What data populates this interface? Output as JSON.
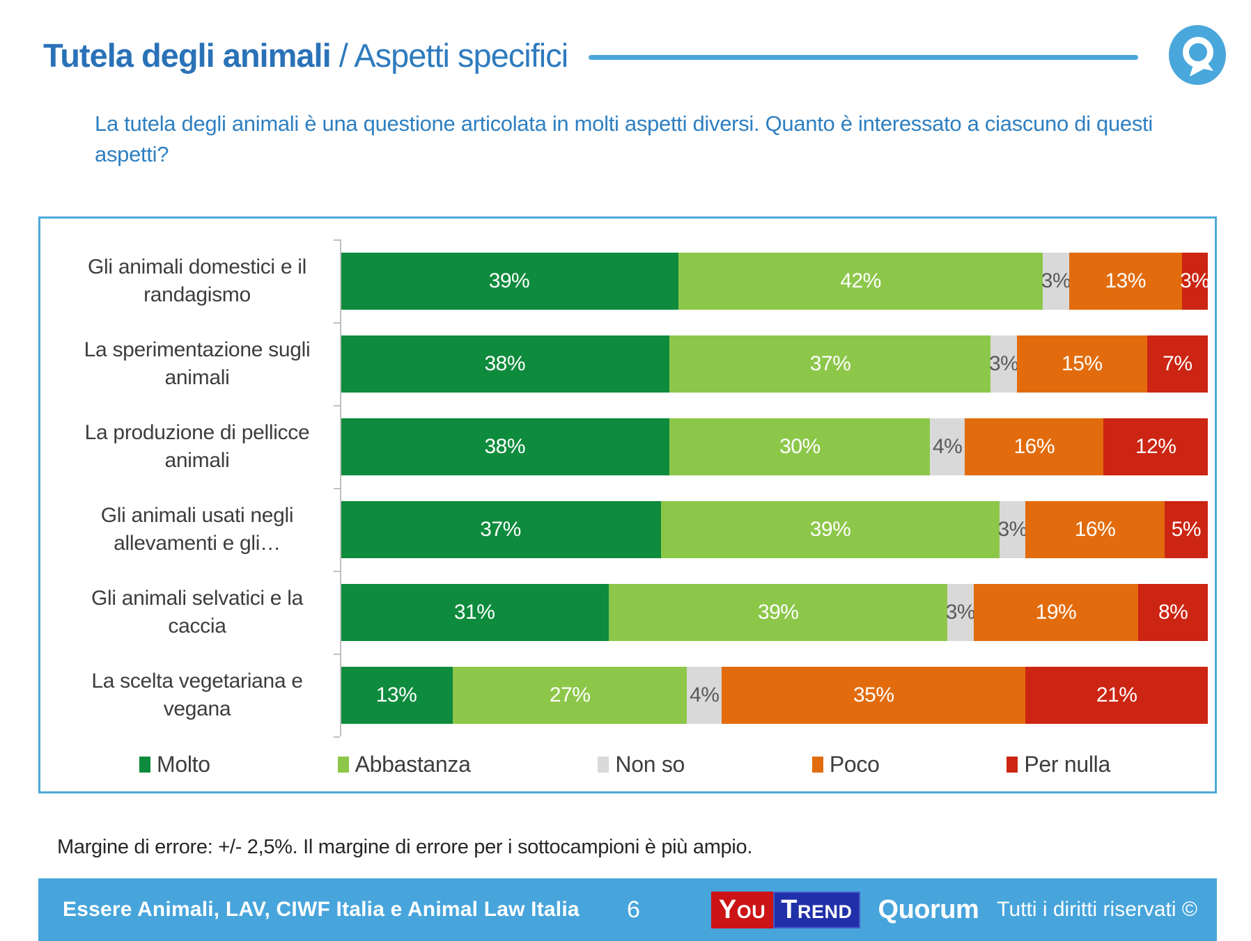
{
  "header": {
    "title_bold": "Tutela degli animali",
    "title_light": " / Aspetti specifici",
    "accent_color": "#49a7db"
  },
  "question": "La tutela degli animali è una questione articolata in molti aspetti diversi. Quanto è interessato a ciascuno di questi aspetti?",
  "chart_data": {
    "type": "bar",
    "variant": "horizontal-stacked-100",
    "categories": [
      "Gli animali domestici e il randagismo",
      "La sperimentazione sugli animali",
      "La produzione di pellicce animali",
      "Gli animali usati negli allevamenti e gli…",
      "Gli animali selvatici e la caccia",
      "La scelta vegetariana e vegana"
    ],
    "series": [
      {
        "name": "Molto",
        "color": "#0e8b3d",
        "label_color": "#ffffff",
        "values": [
          39,
          38,
          38,
          37,
          31,
          13
        ]
      },
      {
        "name": "Abbastanza",
        "color": "#8dc74a",
        "label_color": "#ffffff",
        "values": [
          42,
          37,
          30,
          39,
          39,
          27
        ]
      },
      {
        "name": "Non so",
        "color": "#d9d9d9",
        "label_color": "#595959",
        "values": [
          3,
          3,
          4,
          3,
          3,
          4
        ]
      },
      {
        "name": "Poco",
        "color": "#e26c0d",
        "label_color": "#ffffff",
        "values": [
          13,
          15,
          16,
          16,
          19,
          35
        ]
      },
      {
        "name": "Per nulla",
        "color": "#cc2513",
        "label_color": "#ffffff",
        "values": [
          3,
          7,
          12,
          5,
          8,
          21
        ]
      }
    ],
    "value_suffix": "%",
    "xlim": [
      0,
      100
    ],
    "grid": false,
    "legend_position": "bottom",
    "axis_color": "#bfbfbf"
  },
  "note": "Margine di errore: +/- 2,5%. Il margine di errore per i sottocampioni è più ampio.",
  "footer": {
    "source": "Essere Animali, LAV, CIWF Italia e Animal Law Italia",
    "page_number": "6",
    "youtrend_you": "You",
    "youtrend_trend": "Trend",
    "quorum": "Quorum",
    "rights": "Tutti i diritti riservati ©",
    "bar_color": "#47a5db"
  }
}
